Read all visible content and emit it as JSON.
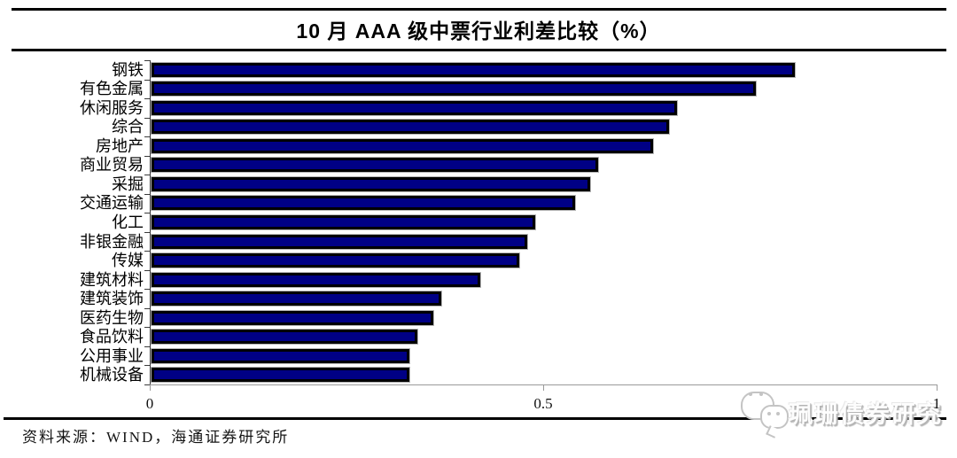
{
  "page": {
    "title": "10 月 AAA 级中票行业利差比较（%）",
    "source_note": "资料来源：WIND，海通证券研究所"
  },
  "watermark": {
    "icon": "wechat-logo",
    "text": "珮珊债券研究"
  },
  "colors": {
    "bar_fill": "#000085",
    "bar_border": "#000000",
    "bar_halo": "#b5b5b5",
    "rule": "#000000",
    "x_axis": "#9a9a9a",
    "y_axis": "#3a3a3a"
  },
  "chart_data": {
    "type": "bar",
    "orientation": "horizontal",
    "title": "10 月 AAA 级中票行业利差比较（%）",
    "unit": "%",
    "categories": [
      "钢铁",
      "有色金属",
      "休闲服务",
      "综合",
      "房地产",
      "商业贸易",
      "采掘",
      "交通运输",
      "化工",
      "非银金融",
      "传媒",
      "建筑材料",
      "建筑装饰",
      "医药生物",
      "食品饮料",
      "公用事业",
      "机械设备"
    ],
    "values": [
      0.82,
      0.77,
      0.67,
      0.66,
      0.64,
      0.57,
      0.56,
      0.54,
      0.49,
      0.48,
      0.47,
      0.42,
      0.37,
      0.36,
      0.34,
      0.33,
      0.33
    ],
    "xlim": [
      0,
      1
    ],
    "x_ticks": [
      {
        "value": 0,
        "label": "0"
      },
      {
        "value": 0.5,
        "label": "0.5"
      },
      {
        "value": 1,
        "label": "1"
      }
    ],
    "grid": false,
    "legend": "none"
  }
}
